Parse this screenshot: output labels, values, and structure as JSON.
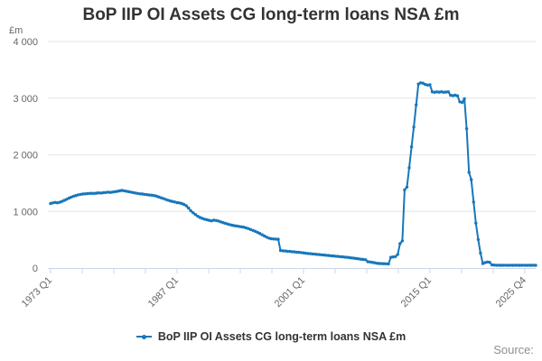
{
  "chart": {
    "title": "BoP IIP OI Assets CG long-term loans NSA £m"
  },
  "legend": {
    "label": "BoP IIP OI Assets CG long-term loans NSA £m"
  },
  "footer": {
    "source": "Source:"
  },
  "colors": {
    "line": "#1777bb",
    "grid": "#e6e6e6",
    "axis": "#ccd6eb",
    "tick_label": "#666666",
    "title": "#333333",
    "source": "#909090"
  },
  "chart_data": {
    "type": "line",
    "title": "BoP IIP OI Assets CG long-term loans NSA £m",
    "xlabel": "",
    "ylabel": "£m",
    "ylim": [
      0,
      4000
    ],
    "grid": true,
    "legend_position": "bottom",
    "frequency": "quarterly",
    "x_start": "1973 Q1",
    "x_end": "2025 Q4",
    "n_x_ticks": 16,
    "x_tick_labels": [
      {
        "tick_index": 0,
        "label": "1973 Q1"
      },
      {
        "tick_index": 4,
        "label": "1987 Q1"
      },
      {
        "tick_index": 8,
        "label": "2001 Q1"
      },
      {
        "tick_index": 12,
        "label": "2015 Q1"
      },
      {
        "tick_index": 15,
        "label": "2025 Q4"
      }
    ],
    "y_tick_values": [
      0,
      1000,
      2000,
      3000,
      4000
    ],
    "y_tick_labels": [
      "0",
      "1 000",
      "2 000",
      "3 000",
      "4 000"
    ],
    "series": [
      {
        "name": "BoP IIP OI Assets CG long-term loans NSA £m",
        "values": [
          1140,
          1150,
          1158,
          1152,
          1162,
          1178,
          1195,
          1215,
          1235,
          1252,
          1268,
          1280,
          1292,
          1300,
          1306,
          1310,
          1315,
          1318,
          1320,
          1318,
          1322,
          1328,
          1325,
          1330,
          1334,
          1340,
          1336,
          1342,
          1348,
          1354,
          1362,
          1370,
          1364,
          1356,
          1348,
          1340,
          1332,
          1324,
          1316,
          1310,
          1306,
          1300,
          1296,
          1290,
          1286,
          1280,
          1270,
          1256,
          1242,
          1228,
          1212,
          1198,
          1186,
          1176,
          1166,
          1156,
          1150,
          1140,
          1124,
          1100,
          1060,
          1010,
          975,
          945,
          915,
          892,
          876,
          862,
          852,
          842,
          834,
          846,
          840,
          830,
          816,
          802,
          790,
          778,
          766,
          756,
          748,
          742,
          735,
          728,
          722,
          710,
          696,
          680,
          664,
          648,
          630,
          610,
          588,
          566,
          545,
          528,
          518,
          513,
          510,
          508,
          310,
          305,
          301,
          297,
          293,
          289,
          285,
          281,
          277,
          272,
          267,
          262,
          257,
          253,
          249,
          245,
          241,
          237,
          233,
          229,
          225,
          221,
          217,
          213,
          209,
          205,
          201,
          197,
          193,
          189,
          184,
          179,
          174,
          168,
          162,
          156,
          151,
          147,
          112,
          107,
          100,
          92,
          85,
          80,
          78,
          76,
          75,
          74,
          190,
          196,
          202,
          240,
          430,
          480,
          1380,
          1430,
          1770,
          2140,
          2490,
          2880,
          3250,
          3270,
          3264,
          3242,
          3230,
          3236,
          3110,
          3104,
          3110,
          3106,
          3112,
          3104,
          3108,
          3110,
          3050,
          3044,
          3052,
          3040,
          2935,
          2925,
          2990,
          2460,
          1690,
          1560,
          1165,
          794,
          503,
          265,
          80,
          95,
          106,
          100,
          55,
          52,
          50,
          49,
          48,
          50,
          49,
          48,
          50,
          48,
          49,
          50,
          48,
          49,
          50,
          48,
          49,
          48,
          50,
          48
        ]
      }
    ]
  }
}
